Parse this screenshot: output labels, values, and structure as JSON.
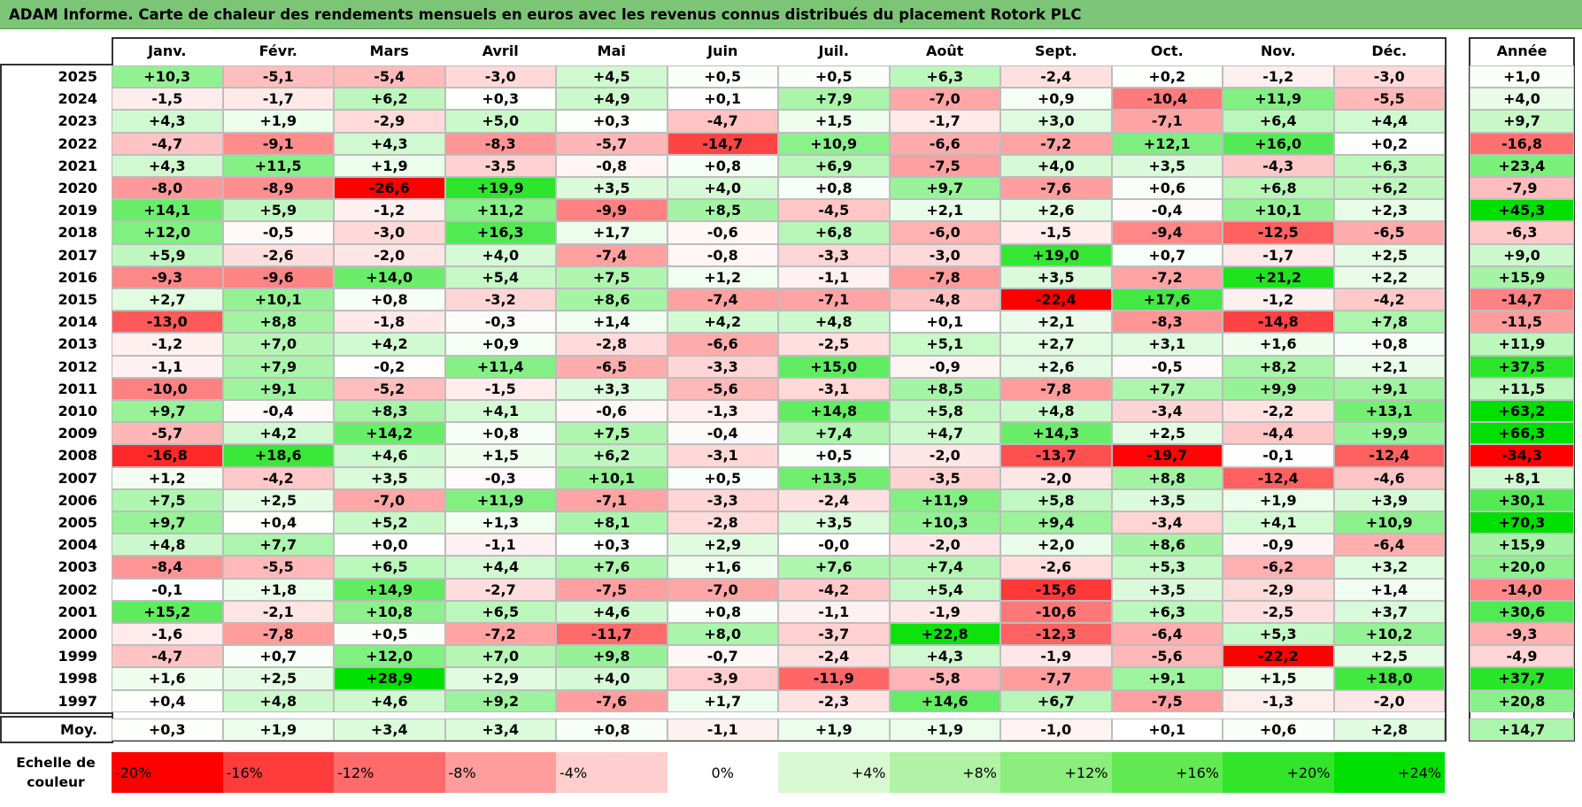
{
  "title": "ADAM Informe. Carte de chaleur des rendements mensuels en euros avec les revenus connus distribués du placement Rotork PLC",
  "chart_data": {
    "type": "heatmap",
    "title": "ADAM Informe. Carte de chaleur des rendements mensuels en euros avec les revenus connus distribués du placement Rotork PLC",
    "columns": [
      "Janv.",
      "Févr.",
      "Mars",
      "Avril",
      "Mai",
      "Juin",
      "Juil.",
      "Août",
      "Sept.",
      "Oct.",
      "Nov.",
      "Déc."
    ],
    "year_column_label": "Année",
    "rows": [
      {
        "year": "2025",
        "values": [
          10.3,
          -5.1,
          -5.4,
          -3.0,
          4.5,
          0.5,
          0.5,
          6.3,
          -2.4,
          0.2,
          -1.2,
          -3.0
        ],
        "annual": 1.0
      },
      {
        "year": "2024",
        "values": [
          -1.5,
          -1.7,
          6.2,
          0.3,
          4.9,
          0.1,
          7.9,
          -7.0,
          0.9,
          -10.4,
          11.9,
          -5.5
        ],
        "annual": 4.0
      },
      {
        "year": "2023",
        "values": [
          4.3,
          1.9,
          -2.9,
          5.0,
          0.3,
          -4.7,
          1.5,
          -1.7,
          3.0,
          -7.1,
          6.4,
          4.4
        ],
        "annual": 9.7
      },
      {
        "year": "2022",
        "values": [
          -4.7,
          -9.1,
          4.3,
          -8.3,
          -5.7,
          -14.7,
          10.9,
          -6.6,
          -7.2,
          12.1,
          16.0,
          0.2
        ],
        "annual": -16.8
      },
      {
        "year": "2021",
        "values": [
          4.3,
          11.5,
          1.9,
          -3.5,
          -0.8,
          0.8,
          6.9,
          -7.5,
          4.0,
          3.5,
          -4.3,
          6.3
        ],
        "annual": 23.4
      },
      {
        "year": "2020",
        "values": [
          -8.0,
          -8.9,
          -26.6,
          19.9,
          3.5,
          4.0,
          0.8,
          9.7,
          -7.6,
          0.6,
          6.8,
          6.2
        ],
        "annual": -7.9
      },
      {
        "year": "2019",
        "values": [
          14.1,
          5.9,
          -1.2,
          11.2,
          -9.9,
          8.5,
          -4.5,
          2.1,
          2.6,
          -0.4,
          10.1,
          2.3
        ],
        "annual": 45.3
      },
      {
        "year": "2018",
        "values": [
          12.0,
          -0.5,
          -3.0,
          16.3,
          1.7,
          -0.6,
          6.8,
          -6.0,
          -1.5,
          -9.4,
          -12.5,
          -6.5
        ],
        "annual": -6.3
      },
      {
        "year": "2017",
        "values": [
          5.9,
          -2.6,
          -2.0,
          4.0,
          -7.4,
          -0.8,
          -3.3,
          -3.0,
          19.0,
          0.7,
          -1.7,
          2.5
        ],
        "annual": 9.0
      },
      {
        "year": "2016",
        "values": [
          -9.3,
          -9.6,
          14.0,
          5.4,
          7.5,
          1.2,
          -1.1,
          -7.8,
          3.5,
          -7.2,
          21.2,
          2.2
        ],
        "annual": 15.9
      },
      {
        "year": "2015",
        "values": [
          2.7,
          10.1,
          0.8,
          -3.2,
          8.6,
          -7.4,
          -7.1,
          -4.8,
          -22.4,
          17.6,
          -1.2,
          -4.2
        ],
        "annual": -14.7
      },
      {
        "year": "2014",
        "values": [
          -13.0,
          8.8,
          -1.8,
          -0.3,
          1.4,
          4.2,
          4.8,
          0.1,
          2.1,
          -8.3,
          -14.8,
          7.8
        ],
        "annual": -11.5
      },
      {
        "year": "2013",
        "values": [
          -1.2,
          7.0,
          4.2,
          0.9,
          -2.8,
          -6.6,
          -2.5,
          5.1,
          2.7,
          3.1,
          1.6,
          0.8
        ],
        "annual": 11.9
      },
      {
        "year": "2012",
        "values": [
          -1.1,
          7.9,
          -0.2,
          11.4,
          -6.5,
          -3.3,
          15.0,
          -0.9,
          2.6,
          -0.5,
          8.2,
          2.1
        ],
        "annual": 37.5
      },
      {
        "year": "2011",
        "values": [
          -10.0,
          9.1,
          -5.2,
          -1.5,
          3.3,
          -5.6,
          -3.1,
          8.5,
          -7.8,
          7.7,
          9.9,
          9.1
        ],
        "annual": 11.5
      },
      {
        "year": "2010",
        "values": [
          9.7,
          -0.4,
          8.3,
          4.1,
          -0.6,
          -1.3,
          14.8,
          5.8,
          4.8,
          -3.4,
          -2.2,
          13.1
        ],
        "annual": 63.2
      },
      {
        "year": "2009",
        "values": [
          -5.7,
          4.2,
          14.2,
          0.8,
          7.5,
          -0.4,
          7.4,
          4.7,
          14.3,
          2.5,
          -4.4,
          9.9
        ],
        "annual": 66.3
      },
      {
        "year": "2008",
        "values": [
          -16.8,
          18.6,
          4.6,
          1.5,
          6.2,
          -3.1,
          0.5,
          -2.0,
          -13.7,
          -19.7,
          -0.1,
          -12.4
        ],
        "annual": -34.3
      },
      {
        "year": "2007",
        "values": [
          1.2,
          -4.2,
          3.5,
          -0.3,
          10.1,
          0.5,
          13.5,
          -3.5,
          -2.0,
          8.8,
          -12.4,
          -4.6
        ],
        "annual": 8.1
      },
      {
        "year": "2006",
        "values": [
          7.5,
          2.5,
          -7.0,
          11.9,
          -7.1,
          -3.3,
          -2.4,
          11.9,
          5.8,
          3.5,
          1.9,
          3.9
        ],
        "annual": 30.1
      },
      {
        "year": "2005",
        "values": [
          9.7,
          0.4,
          5.2,
          1.3,
          8.1,
          -2.8,
          3.5,
          10.3,
          9.4,
          -3.4,
          4.1,
          10.9
        ],
        "annual": 70.3
      },
      {
        "year": "2004",
        "values": [
          4.8,
          7.7,
          0.0,
          -1.1,
          0.3,
          2.9,
          -0.0,
          -2.0,
          2.0,
          8.6,
          -0.9,
          -6.4
        ],
        "annual": 15.9
      },
      {
        "year": "2003",
        "values": [
          -8.4,
          -5.5,
          6.5,
          4.4,
          7.6,
          1.6,
          7.6,
          7.4,
          -2.6,
          5.3,
          -6.2,
          3.2
        ],
        "annual": 20.0
      },
      {
        "year": "2002",
        "values": [
          -0.1,
          1.8,
          14.9,
          -2.7,
          -7.5,
          -7.0,
          -4.2,
          5.4,
          -15.6,
          3.5,
          -2.9,
          1.4
        ],
        "annual": -14.0
      },
      {
        "year": "2001",
        "values": [
          15.2,
          -2.1,
          10.8,
          6.5,
          4.6,
          0.8,
          -1.1,
          -1.9,
          -10.6,
          6.3,
          -2.5,
          3.7
        ],
        "annual": 30.6
      },
      {
        "year": "2000",
        "values": [
          -1.6,
          -7.8,
          0.5,
          -7.2,
          -11.7,
          8.0,
          -3.7,
          22.8,
          -12.3,
          -6.4,
          5.3,
          10.2
        ],
        "annual": -9.3
      },
      {
        "year": "1999",
        "values": [
          -4.7,
          0.7,
          12.0,
          7.0,
          9.8,
          -0.7,
          -2.4,
          4.3,
          -1.9,
          -5.6,
          -22.2,
          2.5
        ],
        "annual": -4.9
      },
      {
        "year": "1998",
        "values": [
          1.6,
          2.5,
          28.9,
          2.9,
          4.0,
          -3.9,
          -11.9,
          -5.8,
          -7.7,
          9.1,
          1.5,
          18.0
        ],
        "annual": 37.7
      },
      {
        "year": "1997",
        "values": [
          0.4,
          4.8,
          4.6,
          9.2,
          -7.6,
          1.7,
          -2.3,
          14.6,
          6.7,
          -7.5,
          -1.3,
          -2.0
        ],
        "annual": 20.8
      }
    ],
    "average": {
      "label": "Moy.",
      "values": [
        0.3,
        1.9,
        3.4,
        3.4,
        0.8,
        -1.1,
        1.9,
        1.9,
        -1.0,
        0.1,
        0.6,
        2.8
      ],
      "annual": 14.7
    },
    "negative_zero_years": [
      "2004"
    ],
    "negative_zero_index": 6,
    "scale": {
      "label": "Echelle de couleur",
      "stops": [
        {
          "label": "-20%",
          "value": -20,
          "color": "#ff0000"
        },
        {
          "label": "-16%",
          "value": -16,
          "color": "#ff3b3b"
        },
        {
          "label": "-12%",
          "value": -12,
          "color": "#ff6a6a"
        },
        {
          "label": "-8%",
          "value": -8,
          "color": "#ff9d9d"
        },
        {
          "label": "-4%",
          "value": -4,
          "color": "#ffcece"
        },
        {
          "label": "0%",
          "value": 0,
          "color": "#ffffff"
        },
        {
          "label": "+4%",
          "value": 4,
          "color": "#d8f8d2"
        },
        {
          "label": "+8%",
          "value": 8,
          "color": "#b2f2a6"
        },
        {
          "label": "+12%",
          "value": 12,
          "color": "#8cee7c"
        },
        {
          "label": "+16%",
          "value": 16,
          "color": "#62ea52"
        },
        {
          "label": "+20%",
          "value": 20,
          "color": "#33e52a"
        },
        {
          "label": "+24%",
          "value": 24,
          "color": "#00e000"
        }
      ]
    },
    "colors": {
      "negative_max": "#ff0000",
      "neutral": "#ffffff",
      "positive_max": "#00e000",
      "title_bar": "#7cc576"
    }
  }
}
